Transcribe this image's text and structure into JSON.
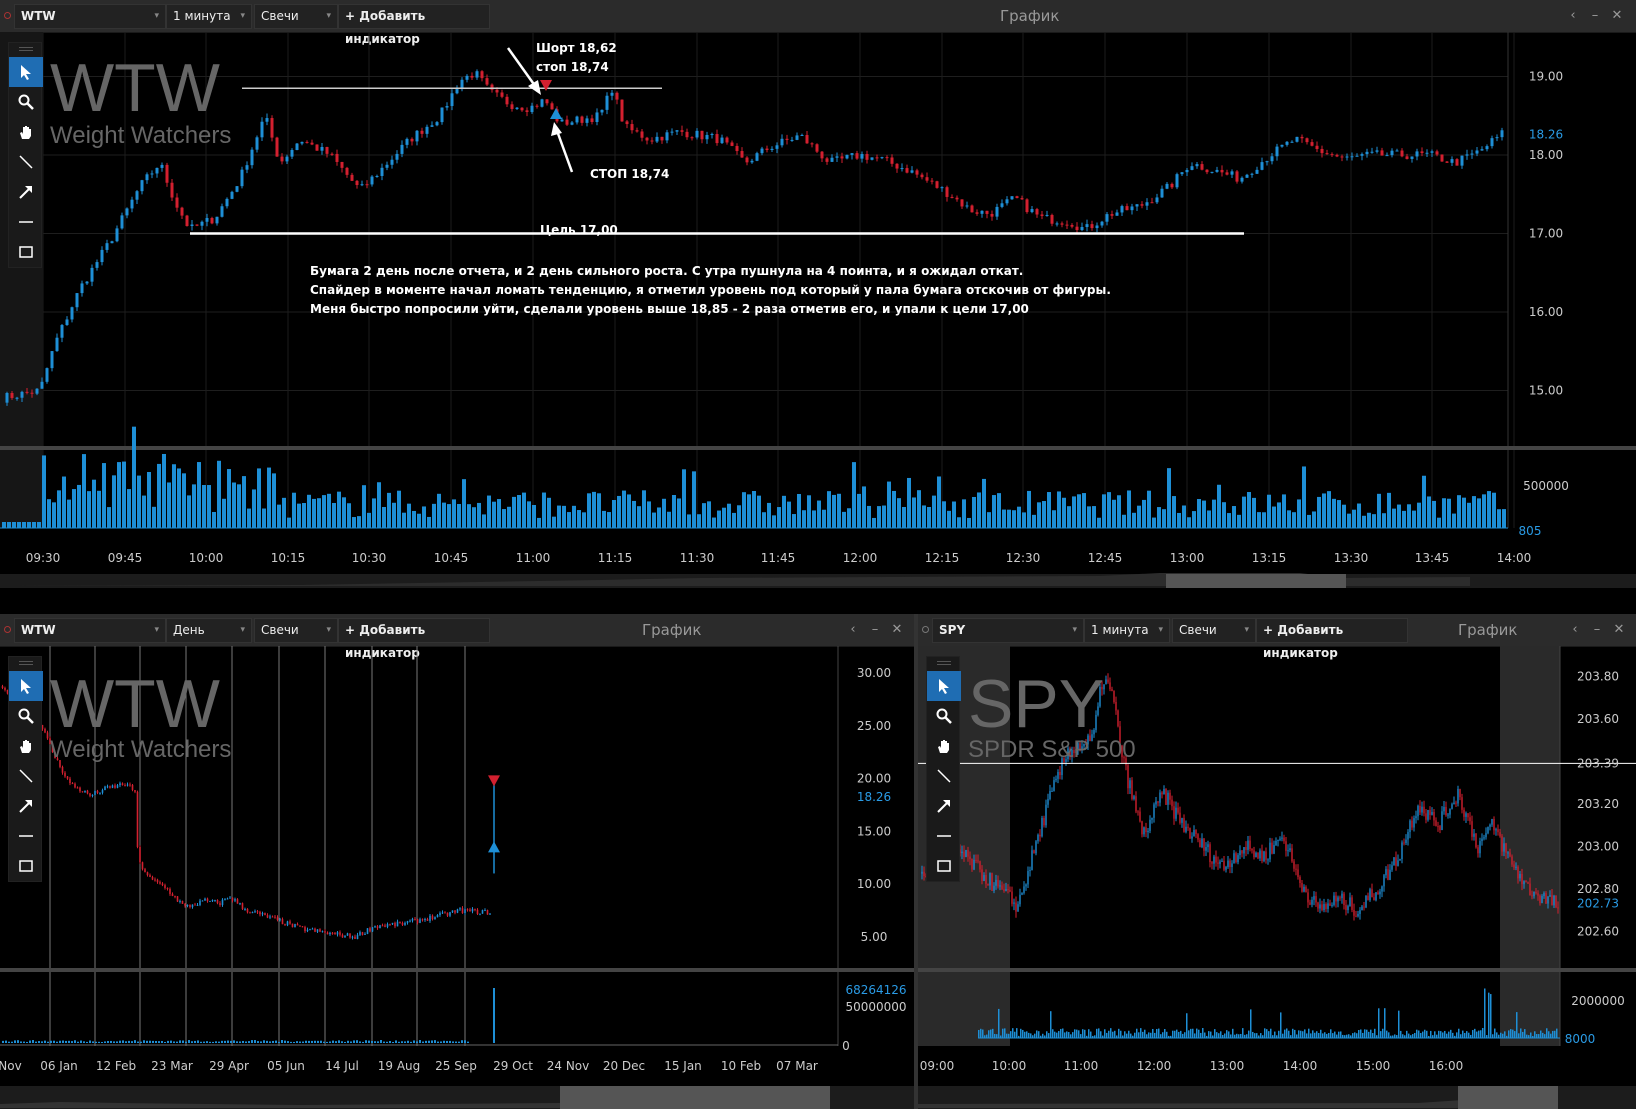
{
  "top": {
    "symbol": "WTW",
    "timeframe": "1 минута",
    "chart_type": "Свечи",
    "add_indicator": "+ Добавить индикатор",
    "title": "График",
    "watermark_symbol": "WTW",
    "watermark_name": "Weight Watchers",
    "annotation_short_1": "Шорт 18,62",
    "annotation_short_2": "стоп 18,74",
    "annotation_stop": "СТОП 18,74",
    "annotation_target": "Цель 17,00",
    "note_lines": [
      "Бумага 2 день после отчета, и 2 день сильного роста. С утра пушнула на 4 поинта, и я ожидал откат.",
      "Спайдер в моменте начал ломать тенденцию, я отметил уровень под который у пала бумага отскочив от фигуры.",
      "Меня быстро попросили уйти, сделали уровень выше 18,85 - 2 раза отметив его, и упали к цели 17,00"
    ],
    "price_labels": [
      "19.00",
      "18.00",
      "17.00",
      "16.00",
      "15.00"
    ],
    "last_price": "18.26",
    "volume_labels": [
      "500000",
      "805"
    ],
    "time_labels": [
      "09:30",
      "09:45",
      "10:00",
      "10:15",
      "10:30",
      "10:45",
      "11:00",
      "11:15",
      "11:30",
      "11:45",
      "12:00",
      "12:15",
      "12:30",
      "12:45",
      "13:00",
      "13:15",
      "13:30",
      "13:45",
      "14:00"
    ]
  },
  "bottom_left": {
    "symbol": "WTW",
    "timeframe": "День",
    "chart_type": "Свечи",
    "add_indicator": "+ Добавить индикатор",
    "title": "График",
    "watermark_symbol": "WTW",
    "watermark_name": "Weight Watchers",
    "price_labels": [
      "30.00",
      "25.00",
      "20.00",
      "15.00",
      "10.00",
      "5.00"
    ],
    "last_price": "18.26",
    "volume_labels": [
      "68264126",
      "50000000",
      "0"
    ],
    "date_labels": [
      "Nov",
      "06 Jan",
      "12 Feb",
      "23 Mar",
      "29 Apr",
      "05 Jun",
      "14 Jul",
      "19 Aug",
      "25 Sep",
      "29 Oct",
      "24 Nov",
      "20 Dec",
      "15 Jan",
      "10 Feb",
      "07 Mar"
    ]
  },
  "bottom_right": {
    "symbol": "SPY",
    "timeframe": "1 минута",
    "chart_type": "Свечи",
    "add_indicator": "+ Добавить индикатор",
    "title": "График",
    "watermark_symbol": "SPY",
    "watermark_name": "SPDR S&P 500",
    "price_labels": [
      "203.80",
      "203.60",
      "203.39",
      "203.20",
      "203.00",
      "202.80",
      "202.73",
      "202.60"
    ],
    "volume_labels": [
      "2000000",
      "8000"
    ],
    "time_labels": [
      "09:00",
      "10:00",
      "11:00",
      "12:00",
      "13:00",
      "14:00",
      "15:00",
      "16:00"
    ]
  },
  "colors": {
    "up": "#1e8fd6",
    "down": "#d3202f",
    "panel_header": "#2b2b2b",
    "tool_active": "#1f6db3"
  },
  "icons": [
    "pointer-icon",
    "zoom-icon",
    "hand-icon",
    "line-icon",
    "arrow-icon",
    "hline-icon",
    "rect-icon"
  ]
}
